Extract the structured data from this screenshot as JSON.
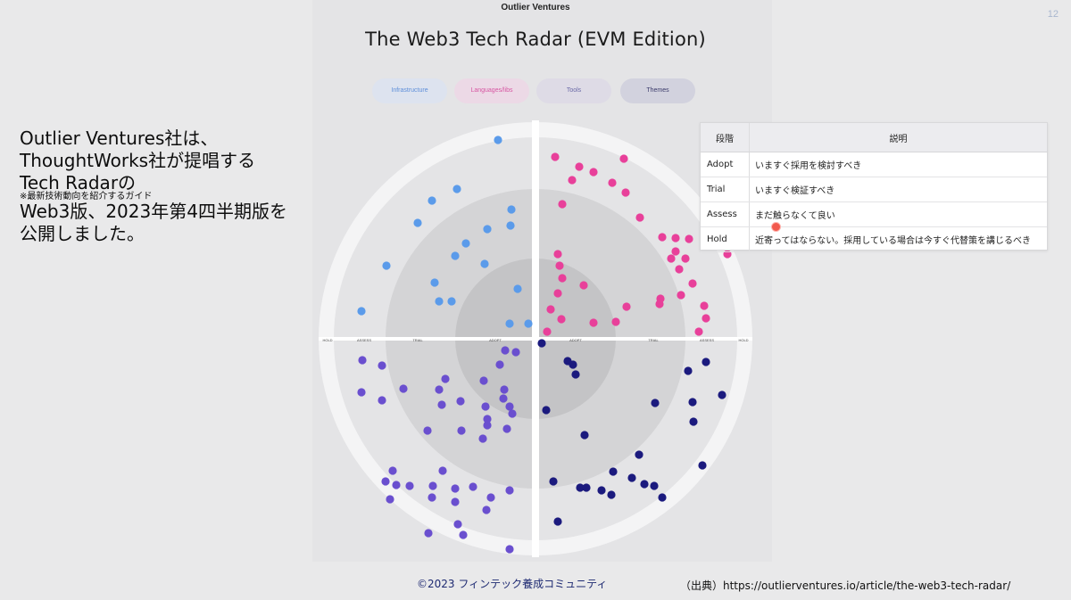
{
  "brand": "Outlier Ventures",
  "page_number": "12",
  "title": "The Web3 Tech Radar (EVM Edition)",
  "tabs": {
    "infrastructure": "Infrastructure",
    "languages": "Languages/libs",
    "tools": "Tools",
    "themes": "Themes"
  },
  "intro": {
    "line1": "Outlier Ventures社は、",
    "line2": "ThoughtWorks社が提唱する",
    "line3": "Tech Radarの",
    "note": "※最新技術動向を紹介するガイド",
    "line4": "Web3版、2023年第4四半期版を",
    "line5": "公開しました。"
  },
  "radar": {
    "ring_labels_left": [
      "HOLD",
      "ASSESS",
      "TRIAL",
      "ADOPT"
    ],
    "ring_labels_right": [
      "ADOPT",
      "TRIAL",
      "ASSESS",
      "HOLD"
    ],
    "colors": {
      "infrastructure": "#5b9bea",
      "languages": "#e8409a",
      "tools": "#6a4fcf",
      "themes": "#1b1a7e"
    }
  },
  "legend_table": {
    "header": {
      "col1": "段階",
      "col2": "説明"
    },
    "rows": [
      {
        "stage": "Adopt",
        "desc": "いますぐ採用を検討すべき"
      },
      {
        "stage": "Trial",
        "desc": "いますぐ検証すべき"
      },
      {
        "stage": "Assess",
        "desc": "まだ触らなくて良い"
      },
      {
        "stage": "Hold",
        "desc": "近寄ってはならない。採用している場合は今すぐ代替策を講じるべき"
      }
    ]
  },
  "footer": {
    "copyright": "©2023 フィンテック養成コミュニティ",
    "source": "（出典）https://outlierventures.io/article/the-web3-tech-radar/"
  }
}
